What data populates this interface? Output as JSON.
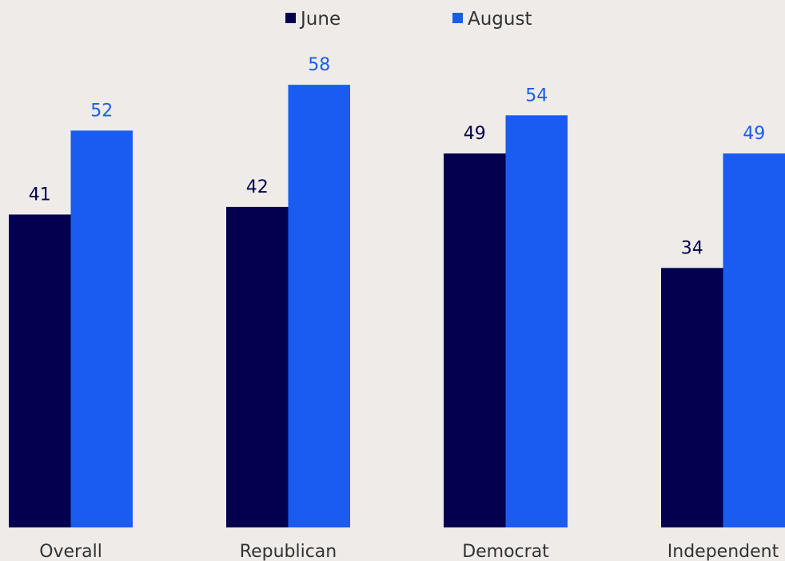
{
  "chart_data": {
    "type": "bar",
    "categories": [
      "Overall",
      "Republican",
      "Democrat",
      "Independent"
    ],
    "series": [
      {
        "name": "June",
        "values": [
          41,
          42,
          49,
          34
        ],
        "color": "#02004f"
      },
      {
        "name": "August",
        "values": [
          52,
          58,
          54,
          49
        ],
        "color": "#1a5cf0"
      }
    ],
    "ylim": [
      0,
      58
    ],
    "grid": false,
    "legend_position": "top-center",
    "show_value_labels": true
  }
}
